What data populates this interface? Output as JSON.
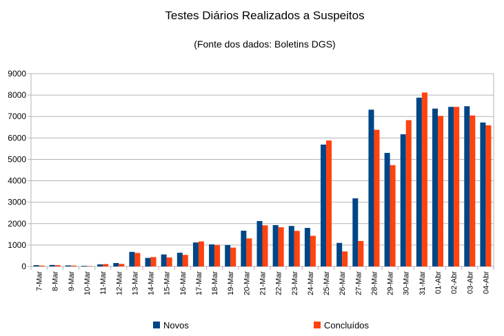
{
  "chart_data": {
    "type": "bar",
    "title": "Testes Diários Realizados a Suspeitos",
    "subtitle": "(Fonte dos dados: Boletins DGS)",
    "xlabel": "",
    "ylabel": "",
    "ylim": [
      0,
      9000
    ],
    "yticks": [
      "0",
      "1000",
      "2000",
      "3000",
      "4000",
      "5000",
      "6000",
      "7000",
      "8000",
      "9000"
    ],
    "grid": true,
    "legend_position": "bottom",
    "categories": [
      "7-Mar",
      "8-Mar",
      "9-Mar",
      "10-Mar",
      "11-Mar",
      "12-Mar",
      "13-Mar",
      "14-Mar",
      "15-Mar",
      "16-Mar",
      "17-Mar",
      "18-Mar",
      "19-Mar",
      "20-Mar",
      "21-Mar",
      "22-Mar",
      "23-Mar",
      "24-Mar",
      "25-Mar",
      "26-Mar",
      "27-Mar",
      "28-Mar",
      "29-Mar",
      "30-Mar",
      "31-Mar",
      "01-Abr",
      "02-Abr",
      "03-Abr",
      "04-Abr"
    ],
    "series": [
      {
        "name": "Novos",
        "color": "#004586",
        "values": [
          60,
          70,
          50,
          30,
          100,
          160,
          680,
          400,
          560,
          640,
          1120,
          1030,
          1000,
          1670,
          2120,
          1930,
          1890,
          1800,
          5690,
          1100,
          3180,
          7320,
          5300,
          6170,
          7880,
          7370,
          7450,
          7480,
          6720
        ]
      },
      {
        "name": "Concluídos",
        "color": "#ff420e",
        "values": [
          40,
          60,
          40,
          20,
          110,
          120,
          630,
          440,
          420,
          540,
          1170,
          1000,
          880,
          1310,
          1920,
          1830,
          1660,
          1430,
          5880,
          700,
          1190,
          6380,
          4730,
          6830,
          8120,
          7030,
          7450,
          7050,
          6590
        ]
      }
    ]
  }
}
